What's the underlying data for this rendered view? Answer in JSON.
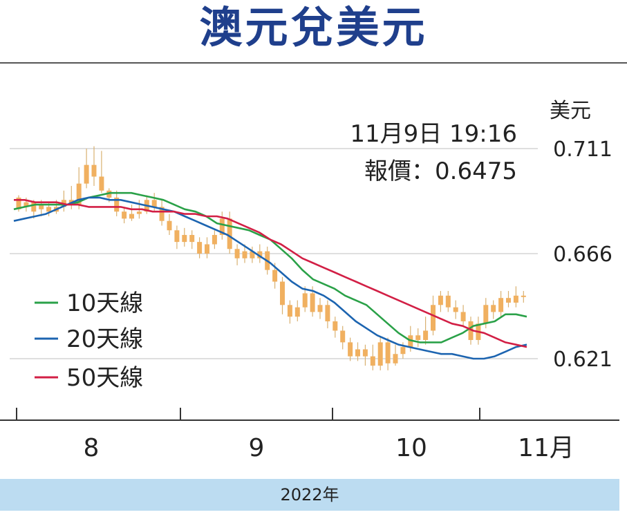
{
  "title": "澳元兌美元",
  "footer": "2022年",
  "chart_data": {
    "type": "candlestick",
    "y_unit": "美元",
    "y_ticks": [
      "0.711",
      "0.666",
      "0.621"
    ],
    "ylim": [
      0.602,
      0.716
    ],
    "x_ticks": [
      "8",
      "9",
      "10",
      "11月"
    ],
    "annotation": {
      "datetime": "11月9日 19:16",
      "price": "報價：0.6475"
    },
    "colors": {
      "candle": "#f0b060",
      "wick": "#d8b070",
      "ma10": "#2aa148",
      "ma20": "#1c64b0",
      "ma50": "#d21f45",
      "grid": "#cccccc"
    },
    "candles": [
      [
        0.69,
        0.685,
        0.691,
        0.684
      ],
      [
        0.686,
        0.688,
        0.69,
        0.684
      ],
      [
        0.688,
        0.684,
        0.689,
        0.681
      ],
      [
        0.685,
        0.687,
        0.689,
        0.682
      ],
      [
        0.686,
        0.684,
        0.688,
        0.682
      ],
      [
        0.684,
        0.686,
        0.689,
        0.683
      ],
      [
        0.686,
        0.689,
        0.693,
        0.684
      ],
      [
        0.689,
        0.687,
        0.695,
        0.685
      ],
      [
        0.687,
        0.696,
        0.703,
        0.685
      ],
      [
        0.696,
        0.704,
        0.711,
        0.694
      ],
      [
        0.704,
        0.699,
        0.712,
        0.695
      ],
      [
        0.699,
        0.693,
        0.71,
        0.692
      ],
      [
        0.693,
        0.69,
        0.694,
        0.688
      ],
      [
        0.69,
        0.684,
        0.693,
        0.682
      ],
      [
        0.684,
        0.681,
        0.686,
        0.679
      ],
      [
        0.681,
        0.683,
        0.687,
        0.68
      ],
      [
        0.683,
        0.684,
        0.689,
        0.681
      ],
      [
        0.684,
        0.689,
        0.691,
        0.683
      ],
      [
        0.689,
        0.686,
        0.692,
        0.684
      ],
      [
        0.686,
        0.68,
        0.689,
        0.678
      ],
      [
        0.68,
        0.676,
        0.683,
        0.674
      ],
      [
        0.676,
        0.671,
        0.678,
        0.668
      ],
      [
        0.671,
        0.674,
        0.677,
        0.669
      ],
      [
        0.674,
        0.671,
        0.676,
        0.668
      ],
      [
        0.671,
        0.666,
        0.673,
        0.664
      ],
      [
        0.666,
        0.67,
        0.673,
        0.664
      ],
      [
        0.67,
        0.674,
        0.676,
        0.668
      ],
      [
        0.674,
        0.681,
        0.684,
        0.672
      ],
      [
        0.681,
        0.668,
        0.684,
        0.666
      ],
      [
        0.668,
        0.664,
        0.67,
        0.661
      ],
      [
        0.664,
        0.667,
        0.67,
        0.662
      ],
      [
        0.667,
        0.664,
        0.669,
        0.662
      ],
      [
        0.664,
        0.667,
        0.67,
        0.662
      ],
      [
        0.667,
        0.659,
        0.669,
        0.657
      ],
      [
        0.659,
        0.654,
        0.662,
        0.651
      ],
      [
        0.654,
        0.644,
        0.656,
        0.64
      ],
      [
        0.644,
        0.639,
        0.646,
        0.636
      ],
      [
        0.639,
        0.643,
        0.646,
        0.637
      ],
      [
        0.643,
        0.649,
        0.652,
        0.641
      ],
      [
        0.649,
        0.641,
        0.652,
        0.639
      ],
      [
        0.641,
        0.644,
        0.647,
        0.638
      ],
      [
        0.644,
        0.637,
        0.646,
        0.634
      ],
      [
        0.637,
        0.633,
        0.639,
        0.63
      ],
      [
        0.633,
        0.628,
        0.635,
        0.625
      ],
      [
        0.628,
        0.622,
        0.63,
        0.62
      ],
      [
        0.622,
        0.625,
        0.628,
        0.62
      ],
      [
        0.625,
        0.622,
        0.627,
        0.618
      ],
      [
        0.622,
        0.618,
        0.627,
        0.616
      ],
      [
        0.618,
        0.628,
        0.63,
        0.616
      ],
      [
        0.628,
        0.619,
        0.63,
        0.616
      ],
      [
        0.619,
        0.623,
        0.627,
        0.618
      ],
      [
        0.623,
        0.626,
        0.628,
        0.621
      ],
      [
        0.626,
        0.631,
        0.635,
        0.624
      ],
      [
        0.631,
        0.629,
        0.634,
        0.626
      ],
      [
        0.629,
        0.633,
        0.639,
        0.627
      ],
      [
        0.633,
        0.644,
        0.648,
        0.631
      ],
      [
        0.644,
        0.648,
        0.65,
        0.641
      ],
      [
        0.648,
        0.643,
        0.65,
        0.641
      ],
      [
        0.643,
        0.641,
        0.646,
        0.638
      ],
      [
        0.641,
        0.637,
        0.644,
        0.635
      ],
      [
        0.637,
        0.629,
        0.639,
        0.627
      ],
      [
        0.629,
        0.636,
        0.639,
        0.627
      ],
      [
        0.636,
        0.644,
        0.647,
        0.634
      ],
      [
        0.644,
        0.641,
        0.646,
        0.638
      ],
      [
        0.641,
        0.647,
        0.65,
        0.639
      ],
      [
        0.647,
        0.645,
        0.65,
        0.643
      ],
      [
        0.645,
        0.648,
        0.652,
        0.643
      ],
      [
        0.648,
        0.6475,
        0.65,
        0.645
      ]
    ],
    "series": [
      {
        "name": "10天線",
        "values": [
          0.685,
          0.686,
          0.687,
          0.687,
          0.687,
          0.687,
          0.688,
          0.69,
          0.691,
          0.692,
          0.692,
          0.692,
          0.691,
          0.69,
          0.689,
          0.687,
          0.685,
          0.684,
          0.682,
          0.679,
          0.678,
          0.677,
          0.676,
          0.674,
          0.672,
          0.668,
          0.664,
          0.659,
          0.655,
          0.653,
          0.651,
          0.648,
          0.646,
          0.644,
          0.64,
          0.636,
          0.632,
          0.629,
          0.628,
          0.628,
          0.628,
          0.63,
          0.632,
          0.635,
          0.636,
          0.637,
          0.64,
          0.64,
          0.639
        ]
      },
      {
        "name": "20天線",
        "values": [
          0.68,
          0.681,
          0.682,
          0.683,
          0.685,
          0.687,
          0.689,
          0.69,
          0.69,
          0.689,
          0.689,
          0.688,
          0.687,
          0.686,
          0.685,
          0.684,
          0.682,
          0.68,
          0.678,
          0.676,
          0.674,
          0.671,
          0.668,
          0.665,
          0.662,
          0.658,
          0.654,
          0.651,
          0.65,
          0.648,
          0.645,
          0.641,
          0.637,
          0.634,
          0.631,
          0.629,
          0.627,
          0.626,
          0.625,
          0.624,
          0.623,
          0.623,
          0.622,
          0.621,
          0.621,
          0.622,
          0.624,
          0.626,
          0.627
        ]
      },
      {
        "name": "50天線",
        "values": [
          0.689,
          0.689,
          0.688,
          0.688,
          0.688,
          0.687,
          0.687,
          0.686,
          0.686,
          0.686,
          0.686,
          0.685,
          0.685,
          0.684,
          0.684,
          0.684,
          0.683,
          0.683,
          0.682,
          0.682,
          0.681,
          0.679,
          0.677,
          0.675,
          0.672,
          0.67,
          0.667,
          0.664,
          0.662,
          0.66,
          0.658,
          0.656,
          0.654,
          0.652,
          0.65,
          0.648,
          0.646,
          0.644,
          0.642,
          0.64,
          0.638,
          0.636,
          0.635,
          0.633,
          0.632,
          0.63,
          0.628,
          0.627,
          0.626
        ]
      }
    ]
  }
}
